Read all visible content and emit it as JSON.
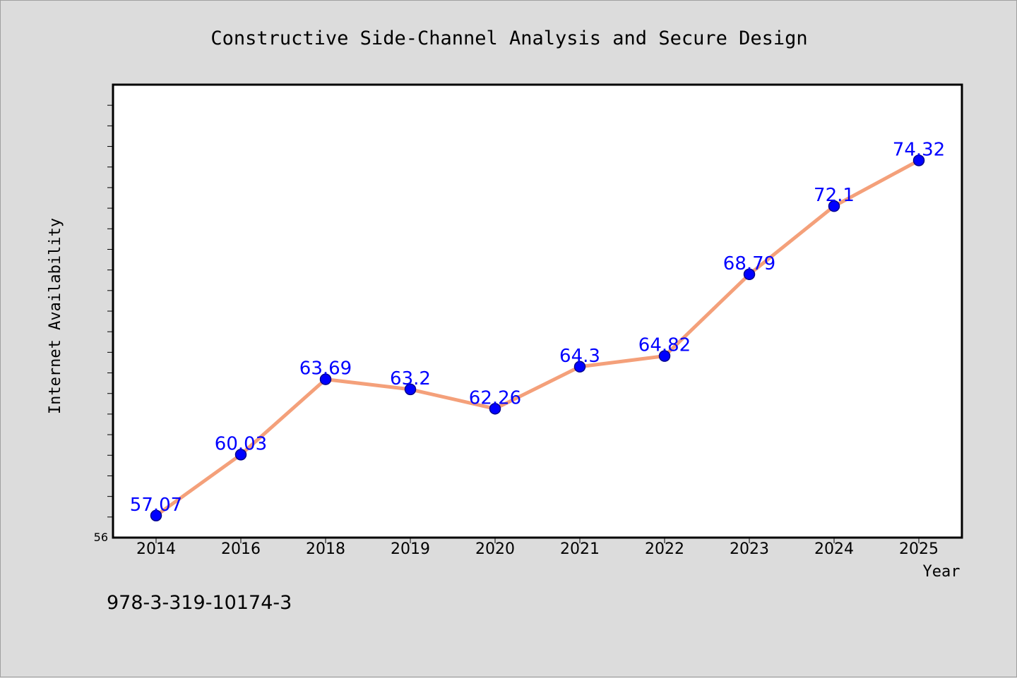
{
  "chart_data": {
    "type": "line",
    "title": "Constructive Side-Channel Analysis and Secure Design",
    "xlabel": "Year",
    "ylabel": "Internet Availability",
    "categories": [
      "2014",
      "2016",
      "2018",
      "2019",
      "2020",
      "2021",
      "2022",
      "2023",
      "2024",
      "2025"
    ],
    "series": [
      {
        "values": [
          57.07,
          60.03,
          63.69,
          63.2,
          62.26,
          64.3,
          64.82,
          68.79,
          72.1,
          74.32
        ],
        "labels": [
          "57.07",
          "60.03",
          "63.69",
          "63.2",
          "62.26",
          "64.3",
          "64.82",
          "68.79",
          "72.1",
          "74.32"
        ]
      }
    ],
    "ylim": [
      56,
      78
    ],
    "y_tick_label": "56",
    "grid": false,
    "legend": "none",
    "colors": {
      "line": "#f4a07a",
      "marker": "#0000ff",
      "label": "#0000ff"
    }
  },
  "footer": {
    "isbn": "978-3-319-10174-3"
  }
}
